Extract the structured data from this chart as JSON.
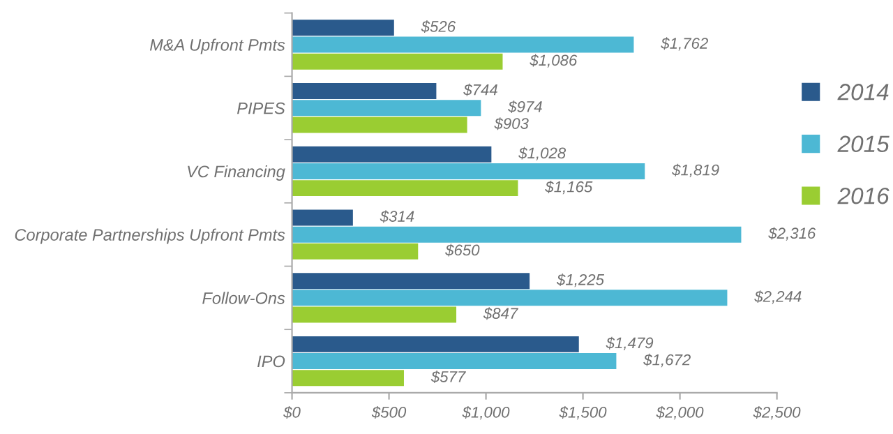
{
  "chart_data": {
    "type": "bar",
    "orientation": "horizontal",
    "categories": [
      "M&A Upfront Pmts",
      "PIPES",
      "VC Financing",
      "Corporate Partnerships Upfront Pmts",
      "Follow-Ons",
      "IPO"
    ],
    "series": [
      {
        "name": "2014",
        "color": "#2a5a8c",
        "values": [
          526,
          744,
          1028,
          314,
          1225,
          1479
        ],
        "value_labels": [
          "$526",
          "$744",
          "$1,028",
          "$314",
          "$1,225",
          "$1,479"
        ]
      },
      {
        "name": "2015",
        "color": "#4db8d4",
        "values": [
          1762,
          974,
          1819,
          2316,
          2244,
          1672
        ],
        "value_labels": [
          "$1,762",
          "$974",
          "$1,819",
          "$2,316",
          "$2,244",
          "$1,672"
        ]
      },
      {
        "name": "2016",
        "color": "#9acd32",
        "values": [
          1086,
          903,
          1165,
          650,
          847,
          577
        ],
        "value_labels": [
          "$1,086",
          "$903",
          "$1,165",
          "$650",
          "$847",
          "$577"
        ]
      }
    ],
    "xlim": [
      0,
      2500
    ],
    "xticks": [
      {
        "value": 0,
        "label": "$0"
      },
      {
        "value": 500,
        "label": "$500"
      },
      {
        "value": 1000,
        "label": "$1,000"
      },
      {
        "value": 1500,
        "label": "$1,500"
      },
      {
        "value": 2000,
        "label": "$2,000"
      },
      {
        "value": 2500,
        "label": "$2,500"
      }
    ],
    "legend": "right",
    "grid": false
  }
}
